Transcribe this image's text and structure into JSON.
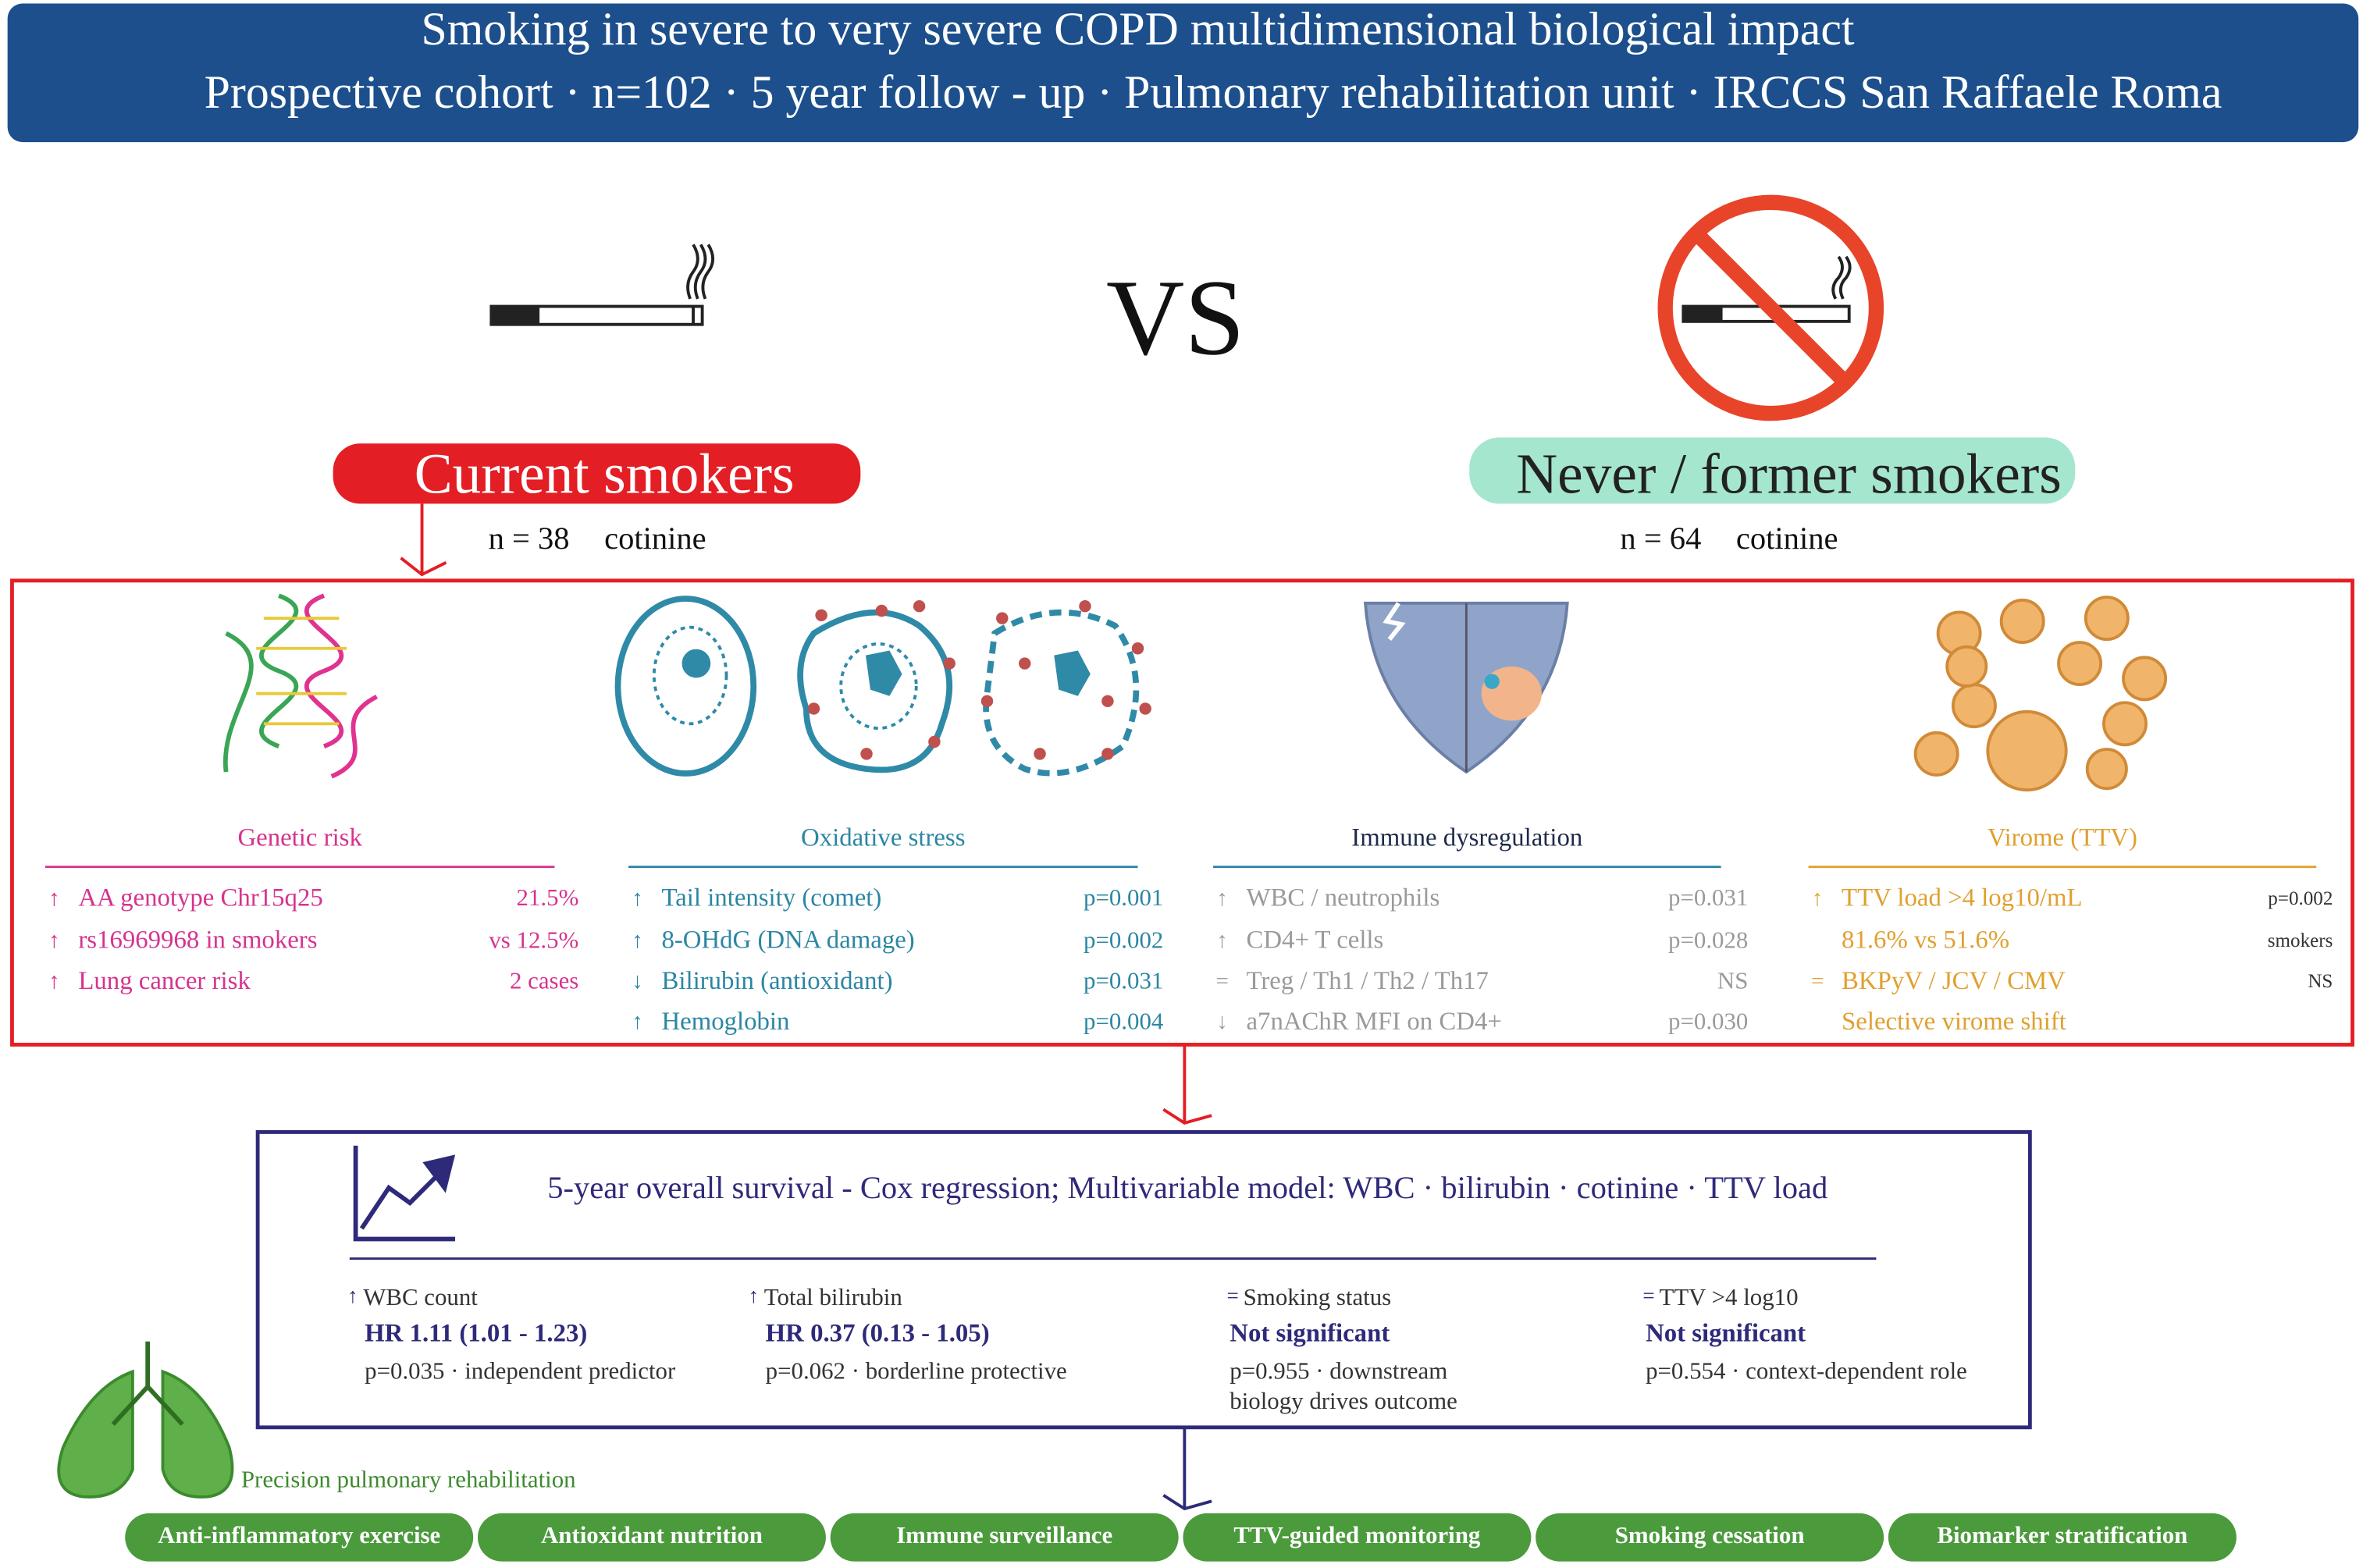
{
  "header": {
    "title": "Smoking in severe to very severe COPD multidimensional biological impact",
    "subtitle": "Prospective cohort · n=102 · 5 year follow - up · Pulmonary rehabilitation unit · IRCCS San Raffaele Roma"
  },
  "vs": "VS",
  "groups": [
    {
      "label": "Current smokers",
      "n": "n = 38",
      "marker": "cotinine"
    },
    {
      "label": "Never / former smokers",
      "n": "n = 64",
      "marker": "cotinine"
    }
  ],
  "panels": [
    {
      "title": "Genetic risk",
      "rows": [
        {
          "arrow": "↑",
          "text": "AA genotype  Chr15q25",
          "stat": "21.5%"
        },
        {
          "arrow": "↑",
          "text": "rs16969968 in smokers",
          "stat": "vs 12.5%"
        },
        {
          "arrow": "↑",
          "text": "Lung cancer risk",
          "stat": "2 cases"
        }
      ]
    },
    {
      "title": "Oxidative stress",
      "rows": [
        {
          "arrow": "↑",
          "text": "Tail intensity (comet)",
          "stat": "p=0.001"
        },
        {
          "arrow": "↑",
          "text": "8-OHdG  (DNA damage)",
          "stat": "p=0.002"
        },
        {
          "arrow": "↓",
          "text": "Bilirubin (antioxidant)",
          "stat": "p=0.031"
        },
        {
          "arrow": "↑",
          "text": "Hemoglobin",
          "stat": "p=0.004"
        }
      ]
    },
    {
      "title": "Immune dysregulation",
      "rows": [
        {
          "arrow": "↑",
          "text": "WBC / neutrophils",
          "stat": "p=0.031"
        },
        {
          "arrow": "↑",
          "text": "CD4+ T cells",
          "stat": "p=0.028"
        },
        {
          "arrow": "=",
          "text": "Treg / Th1 / Th2 / Th17",
          "stat": "NS"
        },
        {
          "arrow": "↓",
          "text": "a7nAChR MFI on CD4+",
          "stat": "p=0.030"
        }
      ]
    },
    {
      "title": "Virome (TTV)",
      "rows": [
        {
          "arrow": "↑",
          "text": "TTV load >4 log10/mL",
          "stat": "p=0.002"
        },
        {
          "text": "81.6% vs 51.6%",
          "stat": "smokers"
        },
        {
          "arrow": "=",
          "text": "BKPyV / JCV / CMV",
          "stat": "NS"
        },
        {
          "text": "Selective virome shift"
        }
      ]
    }
  ],
  "survival": {
    "title": "5-year overall survival - Cox regression; Multivariable model: WBC · bilirubin · cotinine · TTV load",
    "items": [
      {
        "arrow": "↑",
        "label": "WBC count",
        "result": "HR 1.11 (1.01 - 1.23)",
        "note": [
          "p=0.035  ·  independent predictor"
        ]
      },
      {
        "arrow": "↑",
        "label": "Total bilirubin",
        "result": "HR 0.37 (0.13 - 1.05)",
        "note": [
          "p=0.062  ·  borderline protective"
        ]
      },
      {
        "arrow": "=",
        "label": "Smoking status",
        "result": "Not significant",
        "note": [
          "p=0.955  ·  downstream",
          "biology drives outcome"
        ]
      },
      {
        "arrow": "=",
        "label": "TTV >4 log10",
        "result": "Not significant",
        "note": [
          "p=0.554  ·  context-dependent role"
        ]
      }
    ]
  },
  "rehab": {
    "label": "Precision pulmonary rehabilitation",
    "pills": [
      "Anti-inflammatory exercise",
      "Antioxidant nutrition",
      "Immune surveillance",
      "TTV-guided monitoring",
      "Smoking cessation",
      "Biomarker stratification"
    ]
  }
}
